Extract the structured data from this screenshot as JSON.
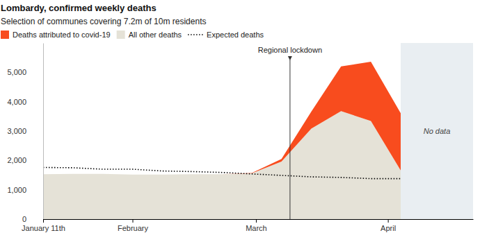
{
  "chart_data": {
    "type": "area",
    "title": "Lombardy, confirmed weekly deaths",
    "subtitle": "Selection of communes covering 7.2m of 10m residents",
    "x": [
      11,
      18,
      25,
      32,
      39,
      46,
      53,
      60,
      67,
      74,
      81,
      88,
      95
    ],
    "series": [
      {
        "name": "Deaths attributed to covid-19",
        "type": "area",
        "color": "#f84c1e",
        "values": [
          0,
          0,
          0,
          0,
          0,
          0,
          0,
          10,
          90,
          580,
          1520,
          2020,
          1950
        ]
      },
      {
        "name": "All other deaths",
        "type": "area",
        "color": "#e5e2d7",
        "values": [
          1530,
          1540,
          1540,
          1520,
          1520,
          1530,
          1530,
          1560,
          1960,
          3080,
          3680,
          3340,
          1660
        ]
      },
      {
        "name": "Expected deaths",
        "type": "line",
        "color": "#000000",
        "line_style": "dotted",
        "values": [
          1760,
          1750,
          1700,
          1700,
          1640,
          1620,
          1590,
          1540,
          1490,
          1440,
          1420,
          1380,
          1380
        ]
      }
    ],
    "stacked": true,
    "grid": false,
    "legend": "top",
    "xlim": [
      11,
      112
    ],
    "xticks": [
      {
        "value": 11,
        "label": "January 11th"
      },
      {
        "value": 32,
        "label": "February"
      },
      {
        "value": 61,
        "label": "March"
      },
      {
        "value": 92,
        "label": "April"
      }
    ],
    "ylim": [
      0,
      6000
    ],
    "yticks": [
      0,
      {
        "value": 1000,
        "label": "1,000"
      },
      {
        "value": 2000,
        "label": "2,000"
      },
      {
        "value": 3000,
        "label": "3,000"
      },
      {
        "value": 4000,
        "label": "4,000"
      },
      {
        "value": 5000,
        "label": "5,000"
      }
    ],
    "annotations": [
      {
        "text": "Regional lockdown",
        "x": 69
      },
      {
        "text": "No data",
        "x_range": [
          95,
          112
        ]
      }
    ]
  }
}
